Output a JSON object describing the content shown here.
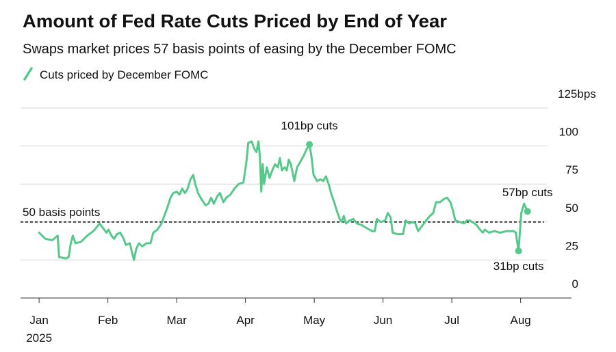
{
  "chart_data": {
    "type": "line",
    "title": "Amount of Fed Rate Cuts Priced by End of Year",
    "subtitle": "Swaps market prices 57 basis points of easing by the December FOMC",
    "x_year_label": "2025",
    "xlim": [
      -0.27,
      7.74
    ],
    "xticks": [
      {
        "value": 0,
        "label": "Jan"
      },
      {
        "value": 1,
        "label": "Feb"
      },
      {
        "value": 2,
        "label": "Mar"
      },
      {
        "value": 3,
        "label": "Apr"
      },
      {
        "value": 4,
        "label": "May"
      },
      {
        "value": 5,
        "label": "Jun"
      },
      {
        "value": 6,
        "label": "Jul"
      },
      {
        "value": 7,
        "label": "Aug"
      }
    ],
    "ylim": [
      0,
      125
    ],
    "yticks": [
      0,
      25,
      50,
      75,
      100,
      {
        "value": 125,
        "label": "125bps"
      }
    ],
    "grid": true,
    "reference_line": {
      "value": 50,
      "label": "50 basis points",
      "style": "dashed"
    },
    "annotations": [
      {
        "text": "101bp cuts",
        "x": 3.93,
        "y": 101
      },
      {
        "text": "31bp cuts",
        "x": 6.97,
        "y": 31
      },
      {
        "text": "57bp cuts",
        "x": 7.1,
        "y": 57
      }
    ],
    "series": [
      {
        "name": "Cuts priced by December FOMC",
        "color": "#55c98a",
        "x": [
          0.0,
          0.09,
          0.19,
          0.27,
          0.29,
          0.39,
          0.43,
          0.46,
          0.49,
          0.53,
          0.61,
          0.7,
          0.79,
          0.88,
          0.93,
          0.98,
          1.01,
          1.05,
          1.09,
          1.13,
          1.18,
          1.23,
          1.26,
          1.32,
          1.35,
          1.38,
          1.41,
          1.45,
          1.5,
          1.56,
          1.62,
          1.66,
          1.72,
          1.78,
          1.82,
          1.86,
          1.91,
          1.95,
          2.0,
          2.04,
          2.08,
          2.12,
          2.16,
          2.2,
          2.24,
          2.27,
          2.31,
          2.36,
          2.42,
          2.46,
          2.5,
          2.54,
          2.59,
          2.63,
          2.68,
          2.72,
          2.78,
          2.84,
          2.9,
          2.97,
          3.01,
          3.04,
          3.09,
          3.13,
          3.16,
          3.19,
          3.21,
          3.23,
          3.25,
          3.27,
          3.31,
          3.35,
          3.39,
          3.43,
          3.47,
          3.5,
          3.53,
          3.57,
          3.6,
          3.63,
          3.66,
          3.71,
          3.75,
          3.79,
          3.85,
          3.89,
          3.93,
          3.96,
          3.99,
          4.04,
          4.09,
          4.13,
          4.17,
          4.21,
          4.25,
          4.29,
          4.33,
          4.37,
          4.4,
          4.43,
          4.46,
          4.51,
          4.57,
          4.62,
          4.69,
          4.76,
          4.84,
          4.88,
          4.91,
          4.97,
          5.03,
          5.07,
          5.11,
          5.14,
          5.21,
          5.29,
          5.33,
          5.38,
          5.43,
          5.47,
          5.51,
          5.56,
          5.61,
          5.66,
          5.73,
          5.77,
          5.83,
          5.88,
          5.93,
          5.98,
          6.02,
          6.05,
          6.12,
          6.18,
          6.22,
          6.26,
          6.3,
          6.36,
          6.41,
          6.45,
          6.48,
          6.54,
          6.62,
          6.7,
          6.8,
          6.9,
          6.93,
          6.97,
          7.01,
          7.05,
          7.1
        ],
        "values": [
          43,
          39,
          38,
          41,
          27,
          26,
          27,
          36,
          41,
          36,
          37,
          41,
          44,
          49,
          46,
          43,
          45,
          41,
          39,
          42,
          43,
          39,
          35,
          36,
          30,
          25,
          32,
          36,
          34,
          36,
          36,
          43,
          45,
          49,
          54,
          59,
          66,
          69,
          70,
          68,
          72,
          69,
          72,
          78,
          81,
          75,
          69,
          65,
          61,
          62,
          66,
          62,
          67,
          69,
          63,
          66,
          68,
          72,
          75,
          76,
          88,
          102,
          103,
          98,
          96,
          103,
          93,
          70,
          88,
          75,
          86,
          79,
          84,
          88,
          86,
          92,
          84,
          86,
          84,
          91,
          88,
          77,
          86,
          89,
          94,
          98,
          101,
          93,
          81,
          77,
          78,
          77,
          80,
          75,
          68,
          63,
          57,
          52,
          50,
          54,
          49,
          51,
          52,
          49,
          48,
          46,
          44,
          44,
          52,
          50,
          51,
          56,
          53,
          43,
          42,
          42,
          51,
          49,
          50,
          49,
          44,
          47,
          50,
          53,
          56,
          63,
          63,
          65,
          66,
          63,
          57,
          51,
          50,
          49,
          51,
          51,
          50,
          48,
          45,
          43,
          45,
          43,
          44,
          43,
          44,
          44,
          43,
          31,
          56,
          62,
          57
        ]
      }
    ]
  }
}
